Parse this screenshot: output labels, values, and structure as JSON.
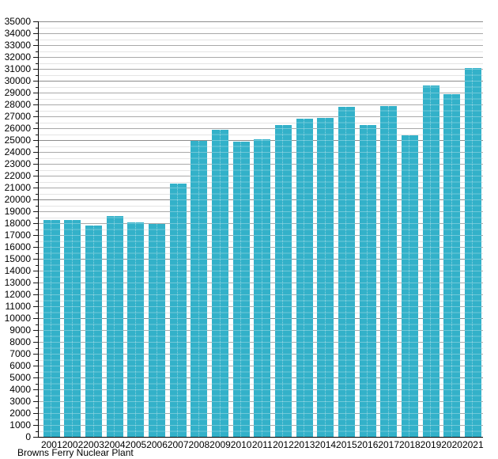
{
  "chart_data": {
    "type": "bar",
    "title": "",
    "xlabel": "",
    "ylabel": "",
    "footnote": "Browns Ferry Nuclear Plant",
    "categories": [
      "2001",
      "2002",
      "2003",
      "2004",
      "2005",
      "2006",
      "2007",
      "2008",
      "2009",
      "2010",
      "2011",
      "2012",
      "2013",
      "2014",
      "2015",
      "2016",
      "2017",
      "2018",
      "2019",
      "2020",
      "2021"
    ],
    "values": [
      18250,
      18300,
      17800,
      18600,
      18050,
      17950,
      21350,
      24950,
      25900,
      24850,
      25050,
      26250,
      26800,
      26850,
      27800,
      26300,
      27900,
      25400,
      29600,
      28850,
      31100
    ],
    "ylim": [
      0,
      35000
    ],
    "y_label_step": 1000,
    "y_minor_step": 500,
    "grid": true,
    "legend": "none",
    "colors": {
      "bar": "#33b1c9",
      "grid_minor": "#e4e4e4",
      "grid_major": "#a9a9a9",
      "grid_major_5000": "#8c8c8c",
      "axis": "#000000",
      "text": "#000000",
      "background": "#ffffff"
    }
  }
}
